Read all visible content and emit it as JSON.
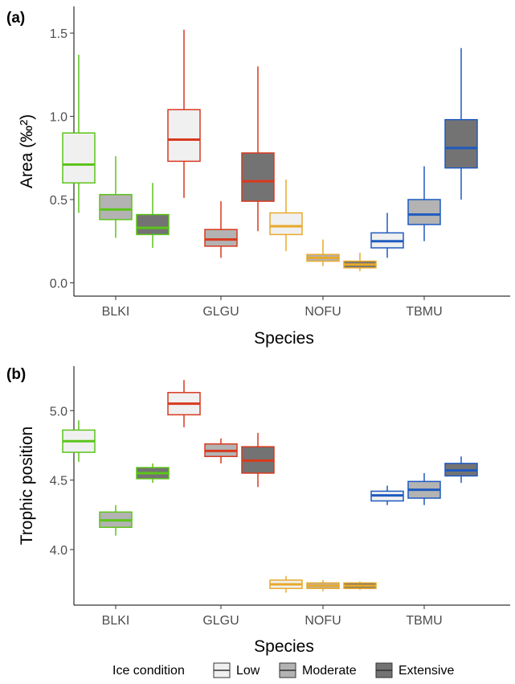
{
  "legend": {
    "title": "Ice condition",
    "levels": [
      {
        "name": "Low",
        "fill": "#f0f0f0"
      },
      {
        "name": "Moderate",
        "fill": "#b3b3b3"
      },
      {
        "name": "Extensive",
        "fill": "#737373"
      }
    ]
  },
  "species_colors": {
    "BLKI": "#5cc41a",
    "GLGU": "#d8391e",
    "NOFU": "#e8a92a",
    "TBMU": "#1e5ac0"
  },
  "chart_data": [
    {
      "type": "box",
      "panel_label": "(a)",
      "xlabel": "Species",
      "ylabel": "Area (‰²)",
      "categories": [
        "BLKI",
        "GLGU",
        "NOFU",
        "TBMU"
      ],
      "ylim": [
        -0.08,
        1.66
      ],
      "yticks": [
        0.0,
        0.5,
        1.0,
        1.5
      ],
      "ytick_labels": [
        "0.0",
        "0.5",
        "1.0",
        "1.5"
      ],
      "grid": false,
      "series": [
        {
          "name": "Low",
          "boxes": [
            {
              "category": "BLKI",
              "min": 0.42,
              "q1": 0.6,
              "median": 0.71,
              "q3": 0.9,
              "max": 1.37
            },
            {
              "category": "GLGU",
              "min": 0.51,
              "q1": 0.73,
              "median": 0.86,
              "q3": 1.04,
              "max": 1.52
            },
            {
              "category": "NOFU",
              "min": 0.19,
              "q1": 0.29,
              "median": 0.34,
              "q3": 0.42,
              "max": 0.62
            },
            {
              "category": "TBMU",
              "min": 0.15,
              "q1": 0.21,
              "median": 0.25,
              "q3": 0.3,
              "max": 0.42
            }
          ]
        },
        {
          "name": "Moderate",
          "boxes": [
            {
              "category": "BLKI",
              "min": 0.27,
              "q1": 0.38,
              "median": 0.44,
              "q3": 0.53,
              "max": 0.76
            },
            {
              "category": "GLGU",
              "min": 0.15,
              "q1": 0.22,
              "median": 0.26,
              "q3": 0.32,
              "max": 0.49
            },
            {
              "category": "NOFU",
              "min": 0.1,
              "q1": 0.13,
              "median": 0.15,
              "q3": 0.17,
              "max": 0.26
            },
            {
              "category": "TBMU",
              "min": 0.25,
              "q1": 0.35,
              "median": 0.41,
              "q3": 0.5,
              "max": 0.7
            }
          ]
        },
        {
          "name": "Extensive",
          "boxes": [
            {
              "category": "BLKI",
              "min": 0.21,
              "q1": 0.29,
              "median": 0.33,
              "q3": 0.41,
              "max": 0.6
            },
            {
              "category": "GLGU",
              "min": 0.31,
              "q1": 0.49,
              "median": 0.61,
              "q3": 0.78,
              "max": 1.3
            },
            {
              "category": "NOFU",
              "min": 0.07,
              "q1": 0.09,
              "median": 0.11,
              "q3": 0.13,
              "max": 0.18
            },
            {
              "category": "TBMU",
              "min": 0.5,
              "q1": 0.69,
              "median": 0.81,
              "q3": 0.98,
              "max": 1.41
            }
          ]
        }
      ]
    },
    {
      "type": "box",
      "panel_label": "(b)",
      "xlabel": "Species",
      "ylabel": "Trophic position",
      "categories": [
        "BLKI",
        "GLGU",
        "NOFU",
        "TBMU"
      ],
      "ylim": [
        3.6,
        5.32
      ],
      "yticks": [
        4.0,
        4.5,
        5.0
      ],
      "ytick_labels": [
        "4.0",
        "4.5",
        "5.0"
      ],
      "grid": false,
      "series": [
        {
          "name": "Low",
          "boxes": [
            {
              "category": "BLKI",
              "min": 4.63,
              "q1": 4.7,
              "median": 4.78,
              "q3": 4.86,
              "max": 4.93
            },
            {
              "category": "GLGU",
              "min": 4.88,
              "q1": 4.97,
              "median": 5.05,
              "q3": 5.13,
              "max": 5.22
            },
            {
              "category": "NOFU",
              "min": 3.69,
              "q1": 3.72,
              "median": 3.75,
              "q3": 3.78,
              "max": 3.81
            },
            {
              "category": "TBMU",
              "min": 4.32,
              "q1": 4.35,
              "median": 4.39,
              "q3": 4.42,
              "max": 4.46
            }
          ]
        },
        {
          "name": "Moderate",
          "boxes": [
            {
              "category": "BLKI",
              "min": 4.1,
              "q1": 4.16,
              "median": 4.21,
              "q3": 4.27,
              "max": 4.32
            },
            {
              "category": "GLGU",
              "min": 4.62,
              "q1": 4.67,
              "median": 4.71,
              "q3": 4.76,
              "max": 4.8
            },
            {
              "category": "NOFU",
              "min": 3.7,
              "q1": 3.72,
              "median": 3.74,
              "q3": 3.76,
              "max": 3.78
            },
            {
              "category": "TBMU",
              "min": 4.32,
              "q1": 4.37,
              "median": 4.43,
              "q3": 4.49,
              "max": 4.55
            }
          ]
        },
        {
          "name": "Extensive",
          "boxes": [
            {
              "category": "BLKI",
              "min": 4.48,
              "q1": 4.51,
              "median": 4.55,
              "q3": 4.59,
              "max": 4.62
            },
            {
              "category": "GLGU",
              "min": 4.45,
              "q1": 4.55,
              "median": 4.64,
              "q3": 4.74,
              "max": 4.84
            },
            {
              "category": "NOFU",
              "min": 3.71,
              "q1": 3.72,
              "median": 3.74,
              "q3": 3.76,
              "max": 3.77
            },
            {
              "category": "TBMU",
              "min": 4.48,
              "q1": 4.53,
              "median": 4.57,
              "q3": 4.62,
              "max": 4.67
            }
          ]
        }
      ]
    }
  ]
}
